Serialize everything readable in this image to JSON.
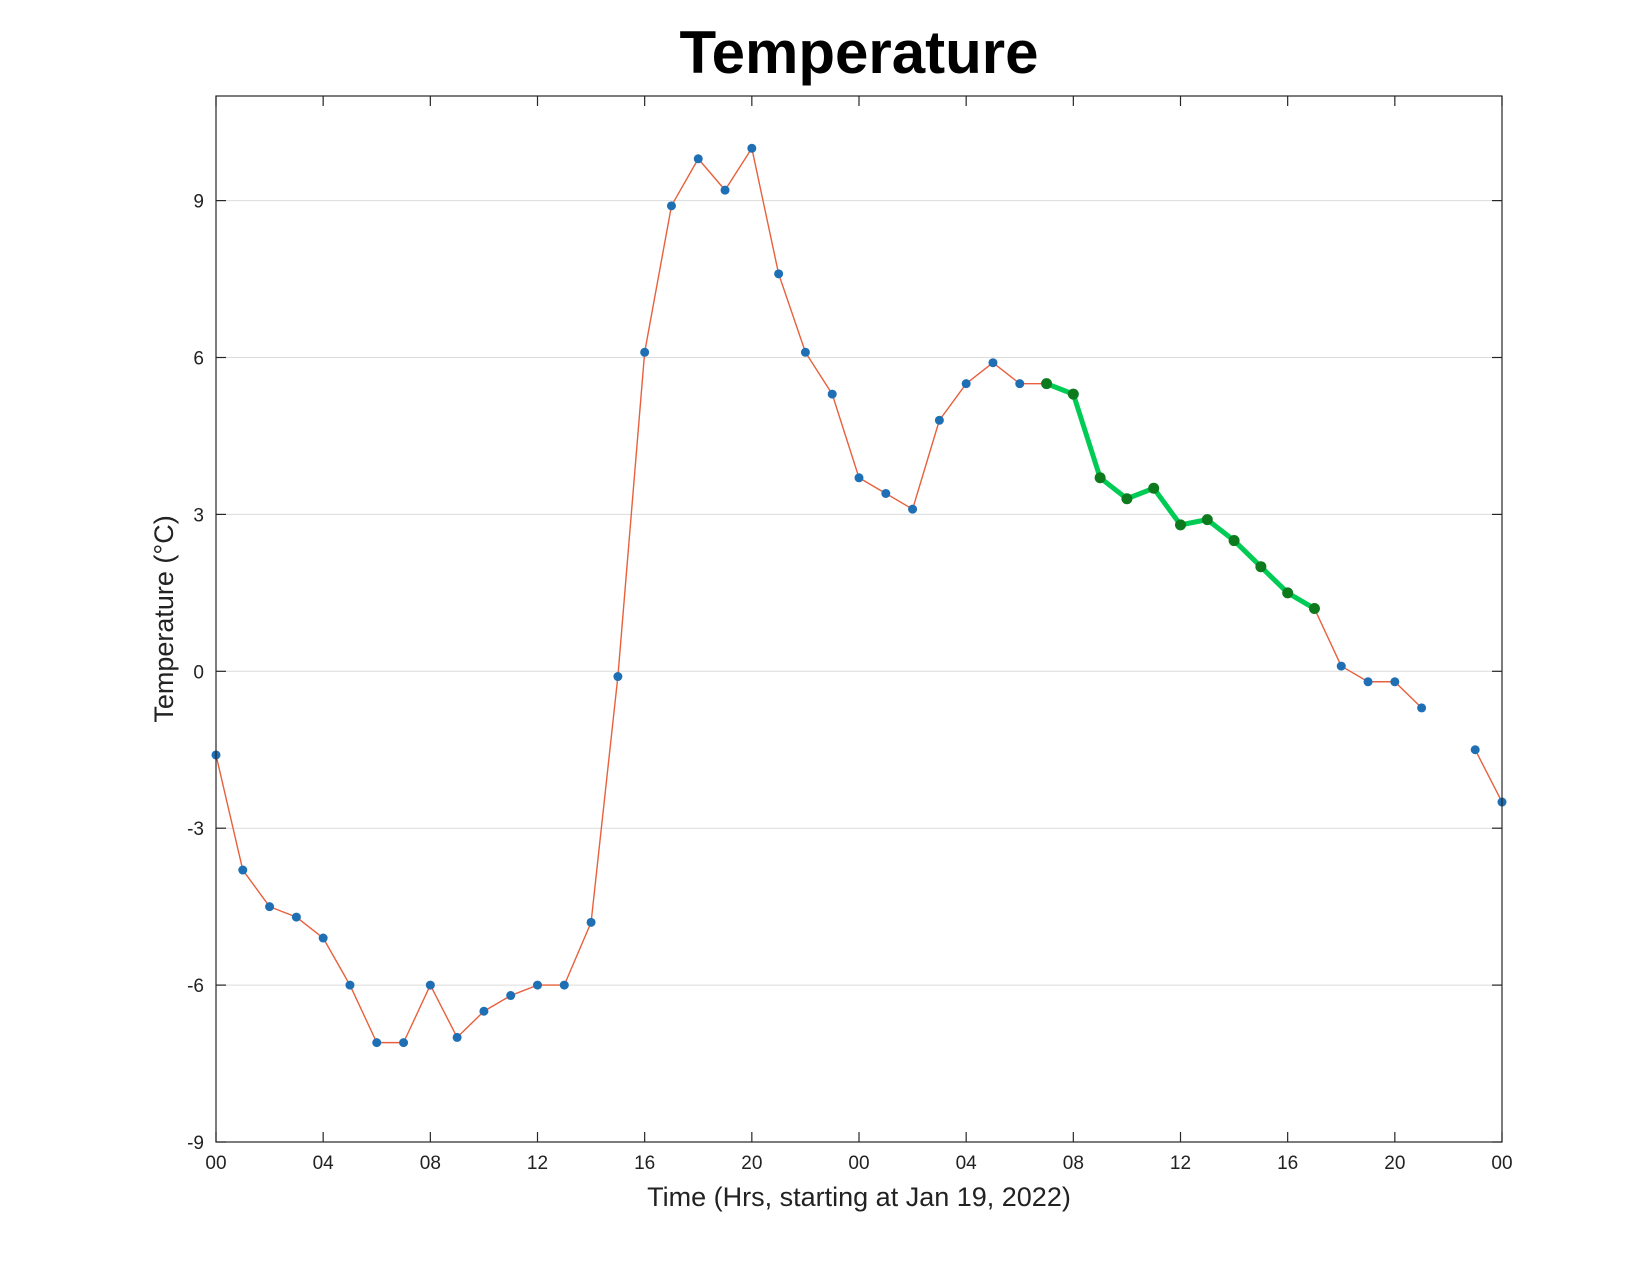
{
  "chart_data": {
    "type": "line",
    "title": "Temperature",
    "xlabel": "Time (Hrs, starting at Jan 19, 2022)",
    "ylabel": "Temperature (°C)",
    "xlim": [
      0,
      48
    ],
    "ylim": [
      -9,
      11
    ],
    "x_ticks": [
      0,
      4,
      8,
      12,
      16,
      20,
      24,
      28,
      32,
      36,
      40,
      44,
      48
    ],
    "x_tick_labels": [
      "00",
      "04",
      "08",
      "12",
      "16",
      "20",
      "00",
      "04",
      "08",
      "12",
      "16",
      "20",
      "00"
    ],
    "y_ticks": [
      -9,
      -6,
      -3,
      0,
      3,
      6,
      9
    ],
    "y_tick_labels": [
      "-9",
      "-6",
      "-3",
      "0",
      "3",
      "6",
      "9"
    ],
    "grid": "horizontal",
    "series": [
      {
        "line_color": "#e8603c",
        "marker_color": "#1f6fb4",
        "points": [
          [
            0,
            -1.6
          ],
          [
            1,
            -3.8
          ],
          [
            2,
            -4.5
          ],
          [
            3,
            -4.7
          ],
          [
            4,
            -5.1
          ],
          [
            5,
            -6.0
          ],
          [
            6,
            -7.1
          ],
          [
            7,
            -7.1
          ],
          [
            8,
            -6.0
          ],
          [
            9,
            -7.0
          ],
          [
            10,
            -6.5
          ],
          [
            11,
            -6.2
          ],
          [
            12,
            -6.0
          ],
          [
            13,
            -6.0
          ],
          [
            14,
            -4.8
          ],
          [
            15,
            -0.1
          ],
          [
            16,
            6.1
          ],
          [
            17,
            8.9
          ],
          [
            18,
            9.8
          ],
          [
            19,
            9.2
          ],
          [
            20,
            10.0
          ],
          [
            21,
            7.6
          ],
          [
            22,
            6.1
          ],
          [
            23,
            5.3
          ],
          [
            24,
            3.7
          ],
          [
            25,
            3.4
          ],
          [
            26,
            3.1
          ],
          [
            27,
            4.8
          ],
          [
            28,
            5.5
          ],
          [
            29,
            5.9
          ],
          [
            30,
            5.5
          ],
          [
            31,
            5.5
          ],
          [
            32,
            5.3
          ],
          [
            33,
            3.7
          ],
          [
            34,
            3.3
          ],
          [
            35,
            3.5
          ],
          [
            36,
            2.8
          ],
          [
            37,
            2.9
          ],
          [
            38,
            2.5
          ],
          [
            39,
            2.0
          ],
          [
            40,
            1.5
          ],
          [
            41,
            1.2
          ],
          [
            42,
            0.1
          ],
          [
            43,
            -0.2
          ],
          [
            44,
            -0.2
          ],
          [
            45,
            -0.7
          ],
          [
            null,
            null
          ],
          [
            47,
            -1.5
          ],
          [
            48,
            -2.5
          ]
        ]
      },
      {
        "line_color": "#00cc55",
        "marker_color": "#0e7a1e",
        "points": [
          [
            31,
            5.5
          ],
          [
            32,
            5.3
          ],
          [
            33,
            3.7
          ],
          [
            34,
            3.3
          ],
          [
            35,
            3.5
          ],
          [
            36,
            2.8
          ],
          [
            37,
            2.9
          ],
          [
            38,
            2.5
          ],
          [
            39,
            2.0
          ],
          [
            40,
            1.5
          ],
          [
            41,
            1.2
          ]
        ]
      }
    ]
  }
}
